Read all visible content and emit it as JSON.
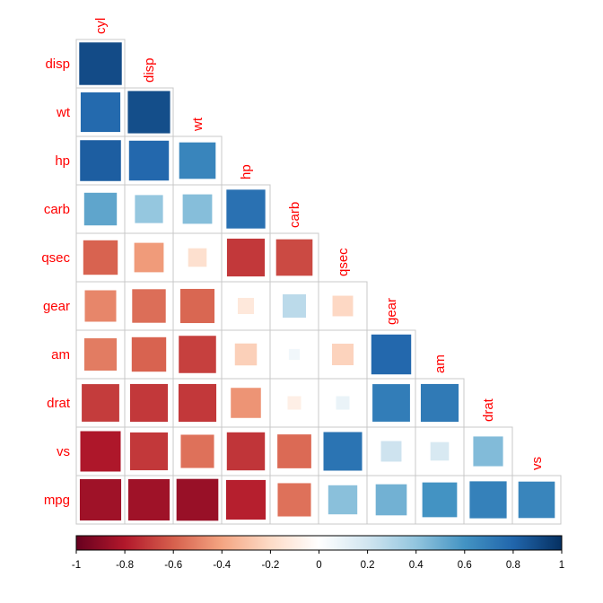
{
  "chart_data": {
    "type": "heatmap",
    "subtype": "correlation-matrix-lower-triangle",
    "method": "square",
    "variables": [
      "cyl",
      "disp",
      "wt",
      "hp",
      "carb",
      "qsec",
      "gear",
      "am",
      "drat",
      "vs",
      "mpg"
    ],
    "row_labels": [
      "disp",
      "wt",
      "hp",
      "carb",
      "qsec",
      "gear",
      "am",
      "drat",
      "vs",
      "mpg"
    ],
    "column_labels": [
      "cyl",
      "disp",
      "wt",
      "hp",
      "carb",
      "qsec",
      "gear",
      "am",
      "drat",
      "vs"
    ],
    "rows": [
      {
        "name": "disp",
        "values": [
          0.9
        ]
      },
      {
        "name": "wt",
        "values": [
          0.78,
          0.89
        ]
      },
      {
        "name": "hp",
        "values": [
          0.83,
          0.79,
          0.66
        ]
      },
      {
        "name": "carb",
        "values": [
          0.53,
          0.39,
          0.43,
          0.75
        ]
      },
      {
        "name": "qsec",
        "values": [
          -0.59,
          -0.43,
          -0.17,
          -0.71,
          -0.66
        ]
      },
      {
        "name": "gear",
        "values": [
          -0.49,
          -0.56,
          -0.58,
          -0.13,
          0.27,
          -0.21
        ]
      },
      {
        "name": "am",
        "values": [
          -0.52,
          -0.59,
          -0.69,
          -0.24,
          0.06,
          -0.23,
          0.79
        ]
      },
      {
        "name": "drat",
        "values": [
          -0.7,
          -0.71,
          -0.71,
          -0.45,
          -0.09,
          0.09,
          0.7,
          0.71
        ]
      },
      {
        "name": "vs",
        "values": [
          -0.81,
          -0.71,
          -0.55,
          -0.72,
          -0.57,
          0.74,
          0.21,
          0.17,
          0.44
        ]
      },
      {
        "name": "mpg",
        "values": [
          -0.85,
          -0.85,
          -0.87,
          -0.78,
          -0.55,
          0.42,
          0.48,
          0.6,
          0.68,
          0.66
        ]
      }
    ],
    "colorbar": {
      "range": [
        -1,
        1
      ],
      "tick_labels": [
        "-1",
        "-0.8",
        "-0.6",
        "-0.4",
        "-0.2",
        "0",
        "0.2",
        "0.4",
        "0.6",
        "0.8",
        "1"
      ],
      "placement": "bottom",
      "colors": [
        "#67001f",
        "#b2182b",
        "#d6604d",
        "#f4a582",
        "#fddbc7",
        "#ffffff",
        "#d1e5f0",
        "#92c5de",
        "#4393c3",
        "#2166ac",
        "#053061"
      ]
    },
    "label_color": "#ff0000",
    "grid_color": "#c8c8c8"
  }
}
